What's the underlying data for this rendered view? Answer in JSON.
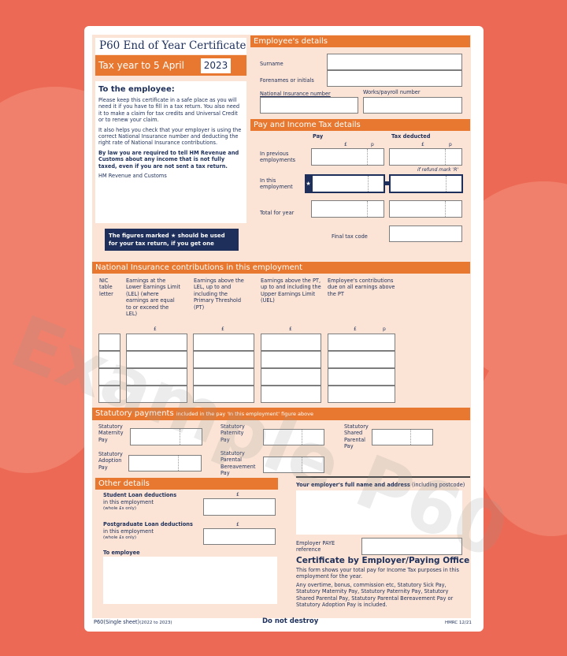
{
  "title": "P60 End of Year Certificate",
  "tax_year_label": "Tax year to 5 April",
  "tax_year": "2023",
  "employee_note": {
    "heading": "To the employee:",
    "p1": "Please keep this certificate in a safe place as you will need it if you have to fill in a tax return. You also need it to make a claim for tax credits and Universal Credit or to renew your claim.",
    "p2": "It also helps you check that your employer is using the correct National Insurance number and deducting the right rate of National Insurance contributions.",
    "p3": "By law you are required to tell HM Revenue and Customs about any income that is not fully taxed, even if you are not sent a tax return.",
    "sign": "HM Revenue and Customs",
    "star_note": "The figures marked ★ should be used for your tax return, if you get one"
  },
  "employee_details": {
    "header": "Employee's details",
    "surname": "Surname",
    "forenames": "Forenames or initials",
    "ni_number": "National Insurance number",
    "payroll_number": "Works/payroll number"
  },
  "pay_tax": {
    "header": "Pay and Income Tax details",
    "pay": "Pay",
    "tax_deducted": "Tax deducted",
    "pound": "£",
    "pence": "p",
    "previous": "In previous employments",
    "this": "In this employment",
    "refund": "if refund mark 'R'",
    "total": "Total for year",
    "tax_code": "Final tax code",
    "star": "★"
  },
  "nic": {
    "header": "National Insurance contributions in this employment",
    "columns": [
      "NIC table letter",
      "Earnings at the Lower Earnings Limit (LEL) (where earnings are equal to or exceed the LEL)",
      "Earnings above the LEL, up to and including the Primary Threshold (PT)",
      "Earnings above the PT, up to and including the Upper Earnings Limit (UEL)",
      "Employee's contributions due on all earnings above the PT"
    ]
  },
  "statutory": {
    "header": "Statutory payments",
    "header_note": "included in the pay 'In this employment' figure above",
    "smp": "Statutory Maternity Pay",
    "spp": "Statutory Paternity Pay",
    "shpp": "Statutory Shared Parental Pay",
    "sap": "Statutory Adoption Pay",
    "spbp": "Statutory Parental Bereavement Pay"
  },
  "other": {
    "header": "Other details",
    "student_loan": "Student Loan deductions",
    "postgrad_loan": "Postgraduate Loan deductions",
    "in_employment": "in this employment",
    "whole": "(whole £s only)",
    "to_employee": "To employee"
  },
  "employer": {
    "address_label": "Your employer's full name and address",
    "address_note": "(including postcode)",
    "paye": "Employer PAYE reference",
    "cert_heading": "Certificate by Employer/Paying Office",
    "cert_p1": "This form shows your total pay for Income Tax purposes in this employment for the year.",
    "cert_p2": "Any overtime, bonus, commission etc, Statutory Sick Pay, Statutory Maternity Pay, Statutory Paternity Pay, Statutory Shared Parental Pay, Statutory Parental Bereavement Pay or Statutory Adoption Pay is included."
  },
  "footer": {
    "form_id": "P60(Single sheet)",
    "form_years": "(2022 to 2023)",
    "center": "Do not destroy",
    "right": "HMRC 12/21"
  },
  "watermark": "Example P60",
  "colors": {
    "background": "#ec6a55",
    "orange": "#e8782f",
    "navy": "#1d2f5a",
    "form": "#fbe4d5"
  }
}
